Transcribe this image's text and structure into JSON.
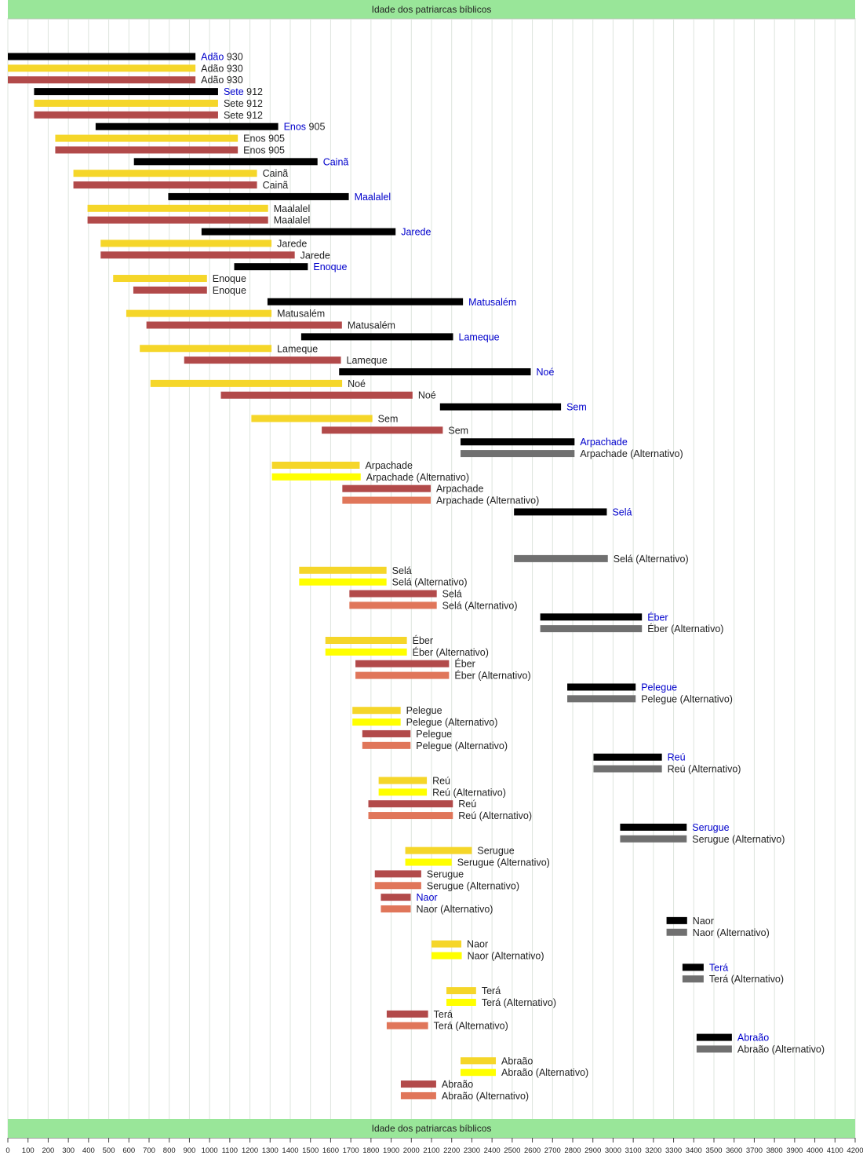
{
  "colors": {
    "black": "#000000",
    "yellow": "#f5d629",
    "bright_yellow": "#ffff00",
    "red": "#b24a4a",
    "salmon": "#e0765a",
    "gray": "#707070",
    "blue_label": "#0000cc",
    "label": "#222222",
    "banner": "#99e699",
    "grid": "#dde4dd"
  },
  "chart_data": {
    "type": "bar",
    "subtype": "timeline",
    "title": "Idade dos patriarcas bíblicos",
    "footer_title": "Idade dos patriarcas bíblicos",
    "xlabel": "",
    "ylabel": "",
    "xlim": [
      0,
      4200
    ],
    "x_ticks": [
      0,
      100,
      200,
      300,
      400,
      500,
      600,
      700,
      800,
      900,
      1000,
      1100,
      1200,
      1300,
      1400,
      1500,
      1600,
      1700,
      1800,
      1900,
      2000,
      2100,
      2200,
      2300,
      2400,
      2500,
      2600,
      2700,
      2800,
      2900,
      3000,
      3100,
      3200,
      3300,
      3400,
      3500,
      3600,
      3700,
      3800,
      3900,
      4000,
      4100,
      4200
    ],
    "grid": true,
    "bars": [
      {
        "start": 0,
        "end": 930,
        "color": "black",
        "name": "Adão",
        "suffix": " 930",
        "name_color": "blue_label"
      },
      {
        "start": 0,
        "end": 930,
        "color": "yellow",
        "name": "Adão",
        "suffix": " 930",
        "name_color": "label"
      },
      {
        "start": 0,
        "end": 930,
        "color": "red",
        "name": "Adão",
        "suffix": " 930",
        "name_color": "label"
      },
      {
        "start": 130,
        "end": 1042,
        "color": "black",
        "name": "Sete",
        "suffix": " 912",
        "name_color": "blue_label"
      },
      {
        "start": 130,
        "end": 1042,
        "color": "yellow",
        "name": "Sete",
        "suffix": " 912",
        "name_color": "label"
      },
      {
        "start": 130,
        "end": 1042,
        "color": "red",
        "name": "Sete",
        "suffix": " 912",
        "name_color": "label"
      },
      {
        "start": 435,
        "end": 1340,
        "color": "black",
        "name": "Enos",
        "suffix": " 905",
        "name_color": "blue_label"
      },
      {
        "start": 235,
        "end": 1140,
        "color": "yellow",
        "name": "Enos",
        "suffix": " 905",
        "name_color": "label"
      },
      {
        "start": 235,
        "end": 1140,
        "color": "red",
        "name": "Enos",
        "suffix": " 905",
        "name_color": "label"
      },
      {
        "start": 625,
        "end": 1535,
        "color": "black",
        "name": "Cainã",
        "suffix": "",
        "name_color": "blue_label"
      },
      {
        "start": 325,
        "end": 1235,
        "color": "yellow",
        "name": "Cainã",
        "suffix": "",
        "name_color": "label"
      },
      {
        "start": 325,
        "end": 1235,
        "color": "red",
        "name": "Cainã",
        "suffix": "",
        "name_color": "label"
      },
      {
        "start": 795,
        "end": 1690,
        "color": "black",
        "name": "Maalalel",
        "suffix": "",
        "name_color": "blue_label"
      },
      {
        "start": 395,
        "end": 1290,
        "color": "yellow",
        "name": "Maalalel",
        "suffix": "",
        "name_color": "label"
      },
      {
        "start": 395,
        "end": 1290,
        "color": "red",
        "name": "Maalalel",
        "suffix": "",
        "name_color": "label"
      },
      {
        "start": 960,
        "end": 1922,
        "color": "black",
        "name": "Jarede",
        "suffix": "",
        "name_color": "blue_label"
      },
      {
        "start": 460,
        "end": 1307,
        "color": "yellow",
        "name": "Jarede",
        "suffix": "",
        "name_color": "label"
      },
      {
        "start": 460,
        "end": 1422,
        "color": "red",
        "name": "Jarede",
        "suffix": "",
        "name_color": "label"
      },
      {
        "start": 1122,
        "end": 1487,
        "color": "black",
        "name": "Enoque",
        "suffix": "",
        "name_color": "blue_label"
      },
      {
        "start": 522,
        "end": 987,
        "color": "yellow",
        "name": "Enoque",
        "suffix": "",
        "name_color": "label"
      },
      {
        "start": 622,
        "end": 987,
        "color": "red",
        "name": "Enoque",
        "suffix": "",
        "name_color": "label"
      },
      {
        "start": 1287,
        "end": 2256,
        "color": "black",
        "name": "Matusalém",
        "suffix": "",
        "name_color": "blue_label"
      },
      {
        "start": 587,
        "end": 1307,
        "color": "yellow",
        "name": "Matusalém",
        "suffix": "",
        "name_color": "label"
      },
      {
        "start": 687,
        "end": 1656,
        "color": "red",
        "name": "Matusalém",
        "suffix": "",
        "name_color": "label"
      },
      {
        "start": 1454,
        "end": 2207,
        "color": "black",
        "name": "Lameque",
        "suffix": "",
        "name_color": "blue_label"
      },
      {
        "start": 654,
        "end": 1307,
        "color": "yellow",
        "name": "Lameque",
        "suffix": "",
        "name_color": "label"
      },
      {
        "start": 874,
        "end": 1651,
        "color": "red",
        "name": "Lameque",
        "suffix": "",
        "name_color": "label"
      },
      {
        "start": 1642,
        "end": 2592,
        "color": "black",
        "name": "Noé",
        "suffix": "",
        "name_color": "blue_label"
      },
      {
        "start": 707,
        "end": 1657,
        "color": "yellow",
        "name": "Noé",
        "suffix": "",
        "name_color": "label"
      },
      {
        "start": 1056,
        "end": 2006,
        "color": "red",
        "name": "Noé",
        "suffix": "",
        "name_color": "label"
      },
      {
        "start": 2142,
        "end": 2742,
        "color": "black",
        "name": "Sem",
        "suffix": "",
        "name_color": "blue_label"
      },
      {
        "start": 1207,
        "end": 1807,
        "color": "yellow",
        "name": "Sem",
        "suffix": "",
        "name_color": "label"
      },
      {
        "start": 1556,
        "end": 2156,
        "color": "red",
        "name": "Sem",
        "suffix": "",
        "name_color": "label"
      },
      {
        "start": 2244,
        "end": 2809,
        "color": "black",
        "name": "Arpachade",
        "suffix": "",
        "name_color": "blue_label"
      },
      {
        "start": 2244,
        "end": 2809,
        "color": "gray",
        "name": "Arpachade (Alternativo)",
        "suffix": "",
        "name_color": "label"
      },
      {
        "start": 1309,
        "end": 1744,
        "color": "yellow",
        "name": "Arpachade",
        "suffix": "",
        "name_color": "label"
      },
      {
        "start": 1309,
        "end": 1749,
        "color": "bright_yellow",
        "name": "Arpachade (Alternativo)",
        "suffix": "",
        "name_color": "label"
      },
      {
        "start": 1658,
        "end": 2096,
        "color": "red",
        "name": "Arpachade",
        "suffix": "",
        "name_color": "label"
      },
      {
        "start": 1658,
        "end": 2096,
        "color": "salmon",
        "name": "Arpachade (Alternativo)",
        "suffix": "",
        "name_color": "label"
      },
      {
        "start": 2509,
        "end": 2969,
        "color": "black",
        "name": "Selá",
        "suffix": "",
        "name_color": "blue_label"
      },
      {
        "start": 2509,
        "end": 2974,
        "color": "gray",
        "name": "Selá (Alternativo)",
        "suffix": "",
        "name_color": "label"
      },
      {
        "start": 1444,
        "end": 1877,
        "color": "yellow",
        "name": "Selá",
        "suffix": "",
        "name_color": "label"
      },
      {
        "start": 1444,
        "end": 1877,
        "color": "bright_yellow",
        "name": "Selá (Alternativo)",
        "suffix": "",
        "name_color": "label"
      },
      {
        "start": 1693,
        "end": 2126,
        "color": "red",
        "name": "Selá",
        "suffix": "",
        "name_color": "label"
      },
      {
        "start": 1693,
        "end": 2126,
        "color": "salmon",
        "name": "Selá (Alternativo)",
        "suffix": "",
        "name_color": "label"
      },
      {
        "start": 2639,
        "end": 3143,
        "color": "black",
        "name": "Éber",
        "suffix": "",
        "name_color": "blue_label"
      },
      {
        "start": 2639,
        "end": 3143,
        "color": "gray",
        "name": "Éber (Alternativo)",
        "suffix": "",
        "name_color": "label"
      },
      {
        "start": 1574,
        "end": 1978,
        "color": "yellow",
        "name": "Éber",
        "suffix": "",
        "name_color": "label"
      },
      {
        "start": 1574,
        "end": 1978,
        "color": "bright_yellow",
        "name": "Éber (Alternativo)",
        "suffix": "",
        "name_color": "label"
      },
      {
        "start": 1723,
        "end": 2187,
        "color": "red",
        "name": "Éber",
        "suffix": "",
        "name_color": "label"
      },
      {
        "start": 1723,
        "end": 2187,
        "color": "salmon",
        "name": "Éber (Alternativo)",
        "suffix": "",
        "name_color": "label"
      },
      {
        "start": 2773,
        "end": 3112,
        "color": "black",
        "name": "Pelegue",
        "suffix": "",
        "name_color": "blue_label"
      },
      {
        "start": 2773,
        "end": 3112,
        "color": "gray",
        "name": "Pelegue  (Alternativo)",
        "suffix": "",
        "name_color": "label"
      },
      {
        "start": 1708,
        "end": 1947,
        "color": "yellow",
        "name": "Pelegue",
        "suffix": "",
        "name_color": "label"
      },
      {
        "start": 1708,
        "end": 1947,
        "color": "bright_yellow",
        "name": "Pelegue  (Alternativo)",
        "suffix": "",
        "name_color": "label"
      },
      {
        "start": 1757,
        "end": 1996,
        "color": "red",
        "name": "Pelegue",
        "suffix": "",
        "name_color": "label"
      },
      {
        "start": 1757,
        "end": 1996,
        "color": "salmon",
        "name": "Pelegue  (Alternativo)",
        "suffix": "",
        "name_color": "label"
      },
      {
        "start": 2903,
        "end": 3242,
        "color": "black",
        "name": "Reú",
        "suffix": "",
        "name_color": "blue_label"
      },
      {
        "start": 2903,
        "end": 3242,
        "color": "gray",
        "name": "Reú (Alternativo)",
        "suffix": "",
        "name_color": "label"
      },
      {
        "start": 1838,
        "end": 2077,
        "color": "yellow",
        "name": "Reú",
        "suffix": "",
        "name_color": "label"
      },
      {
        "start": 1838,
        "end": 2077,
        "color": "bright_yellow",
        "name": "Reú (Alternativo)",
        "suffix": "",
        "name_color": "label"
      },
      {
        "start": 1787,
        "end": 2206,
        "color": "red",
        "name": "Reú",
        "suffix": "",
        "name_color": "label"
      },
      {
        "start": 1787,
        "end": 2206,
        "color": "salmon",
        "name": "Reú (Alternativo)",
        "suffix": "",
        "name_color": "label"
      },
      {
        "start": 3035,
        "end": 3365,
        "color": "black",
        "name": "Serugue",
        "suffix": "",
        "name_color": "blue_label"
      },
      {
        "start": 3035,
        "end": 3365,
        "color": "gray",
        "name": "Serugue (Alternativo)",
        "suffix": "",
        "name_color": "label"
      },
      {
        "start": 1970,
        "end": 2300,
        "color": "yellow",
        "name": "Serugue",
        "suffix": "",
        "name_color": "label"
      },
      {
        "start": 1970,
        "end": 2200,
        "color": "bright_yellow",
        "name": "Serugue (Alternativo)",
        "suffix": "",
        "name_color": "label"
      },
      {
        "start": 1819,
        "end": 2049,
        "color": "red",
        "name": "Serugue",
        "suffix": "",
        "name_color": "label"
      },
      {
        "start": 1819,
        "end": 2049,
        "color": "salmon",
        "name": "Serugue (Alternativo)",
        "suffix": "",
        "name_color": "label"
      },
      {
        "start": 1849,
        "end": 1997,
        "color": "red",
        "name": "Naor",
        "suffix": "",
        "name_color": "blue_label"
      },
      {
        "start": 1849,
        "end": 1997,
        "color": "salmon",
        "name": "Naor (Alternativo)",
        "suffix": "",
        "name_color": "label"
      },
      {
        "start": 3265,
        "end": 3367,
        "color": "black",
        "name": "Naor",
        "suffix": "",
        "name_color": "label"
      },
      {
        "start": 3265,
        "end": 3367,
        "color": "gray",
        "name": "Naor (Alternativo)",
        "suffix": "",
        "name_color": "label"
      },
      {
        "start": 2100,
        "end": 2248,
        "color": "yellow",
        "name": "Naor",
        "suffix": "",
        "name_color": "label"
      },
      {
        "start": 2100,
        "end": 2250,
        "color": "bright_yellow",
        "name": "Naor (Alternativo)",
        "suffix": "",
        "name_color": "label"
      },
      {
        "start": 3344,
        "end": 3449,
        "color": "black",
        "name": "Terá",
        "suffix": "",
        "name_color": "blue_label"
      },
      {
        "start": 3344,
        "end": 3449,
        "color": "gray",
        "name": "Terá (Alternativo)",
        "suffix": "",
        "name_color": "label"
      },
      {
        "start": 2174,
        "end": 2321,
        "color": "yellow",
        "name": "Terá",
        "suffix": "",
        "name_color": "label"
      },
      {
        "start": 2174,
        "end": 2321,
        "color": "bright_yellow",
        "name": "Terá (Alternativo)",
        "suffix": "",
        "name_color": "label"
      },
      {
        "start": 1878,
        "end": 2083,
        "color": "red",
        "name": "Terá",
        "suffix": "",
        "name_color": "label"
      },
      {
        "start": 1878,
        "end": 2083,
        "color": "salmon",
        "name": "Terá (Alternativo)",
        "suffix": "",
        "name_color": "label"
      },
      {
        "start": 3414,
        "end": 3589,
        "color": "black",
        "name": "Abraão",
        "suffix": "",
        "name_color": "blue_label"
      },
      {
        "start": 3414,
        "end": 3589,
        "color": "gray",
        "name": "Abraão (Alternativo)",
        "suffix": "",
        "name_color": "label"
      },
      {
        "start": 2244,
        "end": 2419,
        "color": "yellow",
        "name": "Abraão",
        "suffix": "",
        "name_color": "label"
      },
      {
        "start": 2244,
        "end": 2419,
        "color": "bright_yellow",
        "name": "Abraão (Alternativo)",
        "suffix": "",
        "name_color": "label"
      },
      {
        "start": 1948,
        "end": 2123,
        "color": "red",
        "name": "Abraão",
        "suffix": "",
        "name_color": "label"
      },
      {
        "start": 1948,
        "end": 2123,
        "color": "salmon",
        "name": "Abraão (Alternativo)",
        "suffix": "",
        "name_color": "label"
      }
    ]
  }
}
